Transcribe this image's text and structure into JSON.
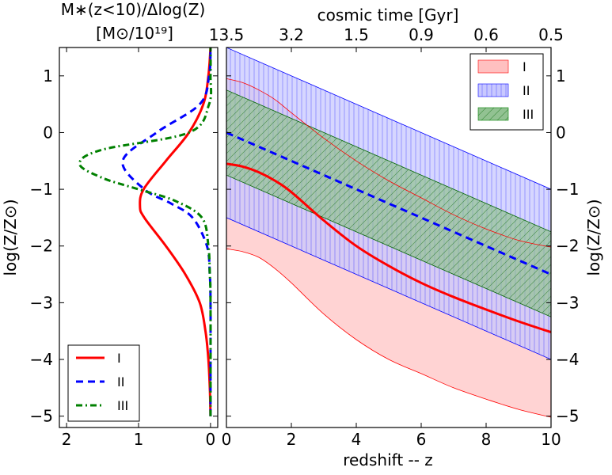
{
  "chart_data": [
    {
      "type": "line",
      "panel": "left",
      "xlabel_line1": "M∗(z<10)/Δlog(Z)",
      "xlabel_line2": "[M⊙/10¹⁹]",
      "ylabel": "log(Z/Z⊙)",
      "xlim": [
        2.1,
        -0.1
      ],
      "ylim": [
        -5.2,
        1.5
      ],
      "xticks": [
        2,
        1,
        0
      ],
      "xtick_labels": [
        "2",
        "1",
        "0"
      ],
      "yticks": [
        1,
        0,
        -1,
        -2,
        -3,
        -4,
        -5
      ],
      "ytick_labels": [
        "1",
        "0",
        "−1",
        "−2",
        "−3",
        "−4",
        "−5"
      ],
      "legend": {
        "location": "lower-left",
        "entries": [
          "I",
          "II",
          "III"
        ]
      },
      "series": [
        {
          "name": "I",
          "color": "#ff0000",
          "style": "solid",
          "y": [
            -5.0,
            -4.5,
            -4.0,
            -3.5,
            -3.0,
            -2.5,
            -2.0,
            -1.5,
            -1.3,
            -1.0,
            -0.5,
            0.0,
            0.5,
            1.0,
            1.5
          ],
          "x": [
            0.0,
            0.01,
            0.03,
            0.07,
            0.15,
            0.35,
            0.62,
            0.92,
            0.98,
            0.93,
            0.62,
            0.3,
            0.1,
            0.03,
            0.0
          ]
        },
        {
          "name": "II",
          "color": "#0000ff",
          "style": "dashed",
          "y": [
            -5.0,
            -4.0,
            -3.0,
            -2.5,
            -2.0,
            -1.5,
            -1.25,
            -1.0,
            -0.5,
            0.0,
            0.5,
            1.0,
            1.5
          ],
          "x": [
            0.0,
            0.0,
            0.0,
            0.01,
            0.05,
            0.25,
            0.55,
            0.92,
            1.22,
            0.75,
            0.15,
            0.02,
            0.0
          ]
        },
        {
          "name": "III",
          "color": "#008000",
          "style": "dashdot",
          "y": [
            -5.0,
            -3.0,
            -2.5,
            -2.0,
            -1.5,
            -1.2,
            -1.0,
            -0.8,
            -0.55,
            -0.3,
            0.0,
            0.5,
            1.0,
            1.5
          ],
          "x": [
            0.0,
            0.0,
            0.01,
            0.03,
            0.12,
            0.5,
            1.0,
            1.5,
            1.82,
            1.5,
            0.3,
            0.02,
            0.0,
            0.0
          ]
        }
      ]
    },
    {
      "type": "area",
      "panel": "right",
      "xlabel": "redshift -- z",
      "ylabel": "log(Z/Z⊙)",
      "top_xlabel": "cosmic time [Gyr]",
      "xlim": [
        0,
        10
      ],
      "ylim": [
        -5.2,
        1.5
      ],
      "xticks": [
        0,
        2,
        4,
        6,
        8,
        10
      ],
      "xtick_labels": [
        "0",
        "2",
        "4",
        "6",
        "8",
        "10"
      ],
      "yticks": [
        1,
        0,
        -1,
        -2,
        -3,
        -4,
        -5
      ],
      "ytick_labels": [
        "1",
        "0",
        "−1",
        "−2",
        "−3",
        "−4",
        "−5"
      ],
      "top_ticks_z": [
        0,
        2,
        4,
        6,
        8,
        10
      ],
      "top_tick_labels": [
        "13.5",
        "3.2",
        "1.5",
        "0.9",
        "0.6",
        "0.5"
      ],
      "legend": {
        "location": "top-right",
        "entries": [
          "I",
          "II",
          "III"
        ]
      },
      "series": [
        {
          "name": "I",
          "color": "#ff0000",
          "fill": "#ffc0c0",
          "hatch": "none",
          "z": [
            0,
            0.5,
            1,
            1.5,
            2,
            3,
            4,
            5,
            6,
            7,
            8,
            9,
            10
          ],
          "median": [
            -0.55,
            -0.6,
            -0.7,
            -0.85,
            -1.05,
            -1.55,
            -2.0,
            -2.35,
            -2.65,
            -2.9,
            -3.12,
            -3.33,
            -3.52
          ],
          "lower": [
            -2.05,
            -2.1,
            -2.2,
            -2.4,
            -2.65,
            -3.2,
            -3.65,
            -4.0,
            -4.25,
            -4.5,
            -4.7,
            -4.88,
            -5.02
          ],
          "upper": [
            0.95,
            0.88,
            0.75,
            0.58,
            0.35,
            -0.1,
            -0.5,
            -0.85,
            -1.15,
            -1.45,
            -1.7,
            -1.9,
            -2.02
          ]
        },
        {
          "name": "II",
          "color": "#0000ff",
          "fill": "#c8c8ff",
          "hatch": "vertical",
          "z": [
            0,
            10
          ],
          "median": [
            0.0,
            -2.5
          ],
          "lower": [
            -1.5,
            -4.0
          ],
          "upper": [
            1.5,
            -1.0
          ]
        },
        {
          "name": "III",
          "color": "#008000",
          "fill": "#92c292",
          "hatch": "diagonal",
          "z": [
            0,
            10
          ],
          "lower": [
            -0.75,
            -3.25
          ],
          "upper": [
            0.75,
            -1.75
          ]
        }
      ]
    }
  ]
}
